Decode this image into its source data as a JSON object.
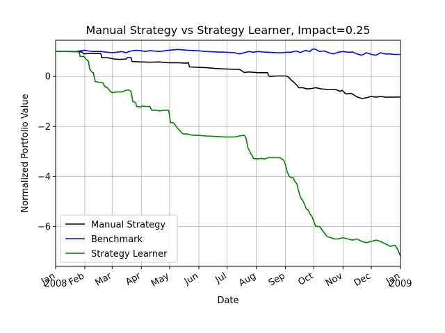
{
  "chart_data": {
    "type": "line",
    "title": "Manual Strategy vs Strategy Learner, Impact=0.25",
    "xlabel": "Date",
    "ylabel": "Normalized Portfolio Value",
    "xlim": [
      0,
      366
    ],
    "ylim": [
      -7.6,
      1.45
    ],
    "grid": true,
    "legend_position": "lower-left",
    "x_ticks": [
      {
        "x": 0,
        "label": "Jan"
      },
      {
        "x": 31,
        "label": "Feb"
      },
      {
        "x": 60,
        "label": "Mar"
      },
      {
        "x": 91,
        "label": "Apr"
      },
      {
        "x": 121,
        "label": "May"
      },
      {
        "x": 152,
        "label": "Jun"
      },
      {
        "x": 182,
        "label": "Jul"
      },
      {
        "x": 213,
        "label": "Aug"
      },
      {
        "x": 244,
        "label": "Sep"
      },
      {
        "x": 274,
        "label": "Oct"
      },
      {
        "x": 305,
        "label": "Nov"
      },
      {
        "x": 335,
        "label": "Dec"
      },
      {
        "x": 366,
        "label": "Jan"
      }
    ],
    "x_year_labels": [
      {
        "x": 0,
        "label": "2008"
      },
      {
        "x": 366,
        "label": "2009"
      }
    ],
    "y_ticks": [
      -6,
      -4,
      -2,
      0
    ],
    "y_tick_labels": [
      "−6",
      "−4",
      "−2",
      "0"
    ],
    "series": [
      {
        "name": "Manual Strategy",
        "color": "#000000",
        "x": [
          0,
          20,
          28,
          30,
          33,
          35,
          38,
          48,
          49,
          55,
          62,
          68,
          75,
          76,
          80,
          81,
          90,
          92,
          100,
          110,
          120,
          130,
          138,
          141,
          142,
          150,
          160,
          170,
          180,
          195,
          198,
          200,
          205,
          215,
          225,
          226,
          228,
          235,
          240,
          245,
          248,
          250,
          252,
          256,
          258,
          262,
          267,
          272,
          276,
          282,
          290,
          297,
          302,
          304,
          308,
          314,
          320,
          325,
          330,
          335,
          340,
          345,
          350,
          357,
          366
        ],
        "y": [
          1.0,
          1.0,
          0.98,
          0.9,
          0.92,
          0.92,
          0.92,
          0.92,
          0.75,
          0.75,
          0.7,
          0.68,
          0.7,
          0.75,
          0.75,
          0.6,
          0.58,
          0.58,
          0.57,
          0.58,
          0.55,
          0.55,
          0.53,
          0.55,
          0.38,
          0.37,
          0.35,
          0.32,
          0.3,
          0.28,
          0.22,
          0.16,
          0.18,
          0.15,
          0.15,
          0.02,
          0.0,
          0.02,
          0.02,
          0.02,
          -0.05,
          -0.15,
          -0.2,
          -0.35,
          -0.45,
          -0.45,
          -0.5,
          -0.48,
          -0.45,
          -0.5,
          -0.52,
          -0.52,
          -0.6,
          -0.55,
          -0.7,
          -0.68,
          -0.82,
          -0.88,
          -0.85,
          -0.8,
          -0.83,
          -0.8,
          -0.83,
          -0.83,
          -0.82
        ]
      },
      {
        "name": "Benchmark",
        "color": "#0000ff",
        "x": [
          0,
          10,
          20,
          25,
          30,
          35,
          40,
          48,
          55,
          60,
          65,
          70,
          75,
          80,
          85,
          90,
          95,
          100,
          110,
          120,
          130,
          140,
          150,
          160,
          170,
          180,
          190,
          195,
          200,
          205,
          210,
          215,
          220,
          225,
          230,
          235,
          240,
          245,
          250,
          255,
          260,
          265,
          270,
          272,
          275,
          280,
          285,
          290,
          295,
          300,
          305,
          310,
          315,
          320,
          325,
          330,
          335,
          340,
          345,
          350,
          355,
          360,
          366
        ],
        "y": [
          1.0,
          1.0,
          0.99,
          1.02,
          1.05,
          1.02,
          1.0,
          1.0,
          0.97,
          0.95,
          0.97,
          1.0,
          0.95,
          1.02,
          1.05,
          1.03,
          1.0,
          1.03,
          1.0,
          1.05,
          1.08,
          1.05,
          1.03,
          1.0,
          0.98,
          0.97,
          0.95,
          0.9,
          0.95,
          1.0,
          0.97,
          1.0,
          0.98,
          0.97,
          0.96,
          0.95,
          0.95,
          0.97,
          0.97,
          1.02,
          0.96,
          1.04,
          1.0,
          1.08,
          1.1,
          1.0,
          1.02,
          0.95,
          0.9,
          0.97,
          1.0,
          0.97,
          0.98,
          0.9,
          0.85,
          0.95,
          0.88,
          0.85,
          0.95,
          0.9,
          0.9,
          0.88,
          0.88
        ]
      },
      {
        "name": "Strategy Learner",
        "color": "#008000",
        "x": [
          0,
          18,
          25,
          26,
          30,
          32,
          35,
          36,
          39,
          40,
          42,
          48,
          50,
          52,
          55,
          58,
          60,
          65,
          70,
          75,
          78,
          80,
          82,
          85,
          86,
          90,
          92,
          95,
          100,
          102,
          106,
          110,
          115,
          118,
          120,
          122,
          125,
          130,
          135,
          140,
          145,
          150,
          160,
          170,
          180,
          190,
          195,
          200,
          202,
          204,
          206,
          210,
          213,
          218,
          222,
          226,
          230,
          234,
          238,
          242,
          244,
          246,
          248,
          250,
          252,
          254,
          256,
          258,
          260,
          262,
          264,
          266,
          268,
          270,
          272,
          274,
          276,
          278,
          280,
          284,
          288,
          292,
          296,
          300,
          305,
          310,
          315,
          320,
          325,
          330,
          335,
          340,
          345,
          350,
          353,
          355,
          360,
          362,
          364,
          366
        ],
        "y": [
          1.0,
          1.0,
          0.98,
          0.8,
          0.8,
          0.7,
          0.6,
          0.3,
          0.15,
          0.15,
          -0.2,
          -0.25,
          -0.25,
          -0.4,
          -0.45,
          -0.6,
          -0.65,
          -0.62,
          -0.62,
          -0.55,
          -0.55,
          -0.6,
          -1.0,
          -1.05,
          -1.2,
          -1.22,
          -1.18,
          -1.2,
          -1.2,
          -1.35,
          -1.35,
          -1.38,
          -1.35,
          -1.35,
          -1.35,
          -1.85,
          -1.85,
          -2.1,
          -2.3,
          -2.3,
          -2.35,
          -2.35,
          -2.38,
          -2.4,
          -2.42,
          -2.42,
          -2.38,
          -2.35,
          -2.45,
          -2.85,
          -3.0,
          -3.28,
          -3.3,
          -3.28,
          -3.3,
          -3.25,
          -3.25,
          -3.25,
          -3.25,
          -3.35,
          -3.55,
          -3.85,
          -4.0,
          -4.05,
          -4.05,
          -4.2,
          -4.3,
          -4.6,
          -4.85,
          -4.95,
          -5.1,
          -5.3,
          -5.35,
          -5.5,
          -5.6,
          -5.8,
          -6.0,
          -6.0,
          -6.0,
          -6.2,
          -6.4,
          -6.45,
          -6.5,
          -6.5,
          -6.45,
          -6.5,
          -6.55,
          -6.5,
          -6.6,
          -6.65,
          -6.6,
          -6.55,
          -6.6,
          -6.7,
          -6.75,
          -6.8,
          -6.75,
          -6.85,
          -7.0,
          -7.2
        ]
      }
    ]
  }
}
